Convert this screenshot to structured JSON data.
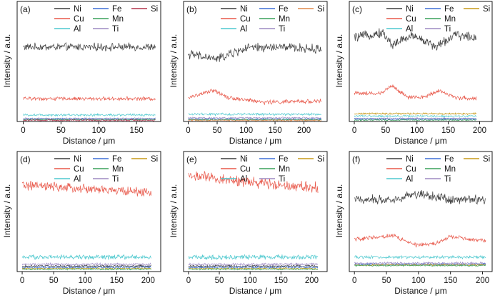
{
  "figure": {
    "xlabel": "Distance / μm",
    "ylabel": "Intensity / a.u."
  },
  "colors": {
    "Ni": "#3d3d3d",
    "Fe": "#3f6fd6",
    "Si": "#c79a18",
    "Si_a": "#b3344b",
    "Si_b": "#e0894a",
    "Cu": "#e8584a",
    "Mn": "#3aa05c",
    "Al": "#4fc9cf",
    "Ti": "#9d8ac2"
  },
  "chart_data": [
    {
      "type": "line",
      "panel_label": "(a)",
      "xlim": [
        -8,
        182
      ],
      "x_ticks": [
        0,
        50,
        100,
        150
      ],
      "x_range": [
        0,
        175
      ],
      "legend": {
        "row1": [
          "Ni",
          "Fe",
          "Si"
        ],
        "row2": [
          "Cu",
          "Mn"
        ],
        "row3": [
          "Al",
          "Ti"
        ]
      },
      "si_color_key": "Si_a",
      "series": [
        {
          "name": "Ni",
          "profile": [
            [
              0,
              0.62
            ],
            [
              175,
              0.62
            ]
          ],
          "noise": 0.025
        },
        {
          "name": "Cu",
          "profile": [
            [
              0,
              0.19
            ],
            [
              175,
              0.19
            ]
          ],
          "noise": 0.012
        },
        {
          "name": "Al",
          "profile": [
            [
              0,
              0.055
            ],
            [
              175,
              0.055
            ]
          ],
          "noise": 0.008
        },
        {
          "name": "Ti",
          "profile": [
            [
              0,
              0.025
            ],
            [
              175,
              0.025
            ]
          ],
          "noise": 0.005
        },
        {
          "name": "Fe",
          "profile": [
            [
              0,
              0.02
            ],
            [
              175,
              0.02
            ]
          ],
          "noise": 0.005
        },
        {
          "name": "Mn",
          "profile": [
            [
              0,
              0.015
            ],
            [
              175,
              0.015
            ]
          ],
          "noise": 0.005
        },
        {
          "name": "Si",
          "profile": [
            [
              0,
              0.01
            ],
            [
              175,
              0.01
            ]
          ],
          "noise": 0.005
        }
      ]
    },
    {
      "type": "line",
      "panel_label": "(b)",
      "xlim": [
        -8,
        240
      ],
      "x_ticks": [
        0,
        50,
        100,
        150,
        200
      ],
      "x_range": [
        0,
        230
      ],
      "legend": {
        "row1": [
          "Ni",
          "Fe",
          "Si"
        ],
        "row2": [
          "Cu",
          "Mn"
        ],
        "row3": [
          "Al",
          "Ti"
        ]
      },
      "si_color_key": "Si_b",
      "series": [
        {
          "name": "Ni",
          "profile": [
            [
              0,
              0.56
            ],
            [
              50,
              0.52
            ],
            [
              100,
              0.61
            ],
            [
              160,
              0.62
            ],
            [
              230,
              0.6
            ]
          ],
          "noise": 0.03
        },
        {
          "name": "Cu",
          "profile": [
            [
              0,
              0.2
            ],
            [
              45,
              0.26
            ],
            [
              70,
              0.2
            ],
            [
              130,
              0.16
            ],
            [
              230,
              0.17
            ]
          ],
          "noise": 0.014
        },
        {
          "name": "Al",
          "profile": [
            [
              0,
              0.06
            ],
            [
              230,
              0.06
            ]
          ],
          "noise": 0.008
        },
        {
          "name": "Ti",
          "profile": [
            [
              0,
              0.03
            ],
            [
              230,
              0.03
            ]
          ],
          "noise": 0.005
        },
        {
          "name": "Fe",
          "profile": [
            [
              0,
              0.02
            ],
            [
              230,
              0.02
            ]
          ],
          "noise": 0.005
        },
        {
          "name": "Mn",
          "profile": [
            [
              0,
              0.015
            ],
            [
              230,
              0.015
            ]
          ],
          "noise": 0.005
        },
        {
          "name": "Si",
          "profile": [
            [
              0,
              0.01
            ],
            [
              230,
              0.01
            ]
          ],
          "noise": 0.005
        }
      ]
    },
    {
      "type": "line",
      "panel_label": "(c)",
      "xlim": [
        -8,
        220
      ],
      "x_ticks": [
        0,
        50,
        100,
        150,
        200
      ],
      "x_range": [
        0,
        195
      ],
      "legend": {
        "row1": [
          "Ni",
          "Fe",
          "Si"
        ],
        "row2": [
          "Cu",
          "Mn"
        ],
        "row3": [
          "Al",
          "Ti"
        ]
      },
      "si_color_key": "Si",
      "series": [
        {
          "name": "Ni",
          "profile": [
            [
              0,
              0.7
            ],
            [
              45,
              0.74
            ],
            [
              60,
              0.64
            ],
            [
              95,
              0.72
            ],
            [
              130,
              0.62
            ],
            [
              160,
              0.72
            ],
            [
              195,
              0.7
            ]
          ],
          "noise": 0.03
        },
        {
          "name": "Cu",
          "profile": [
            [
              0,
              0.24
            ],
            [
              40,
              0.23
            ],
            [
              60,
              0.3
            ],
            [
              85,
              0.2
            ],
            [
              110,
              0.2
            ],
            [
              135,
              0.26
            ],
            [
              160,
              0.2
            ],
            [
              195,
              0.19
            ]
          ],
          "noise": 0.014
        },
        {
          "name": "Si",
          "profile": [
            [
              0,
              0.065
            ],
            [
              195,
              0.065
            ]
          ],
          "noise": 0.006
        },
        {
          "name": "Al",
          "profile": [
            [
              0,
              0.045
            ],
            [
              195,
              0.045
            ]
          ],
          "noise": 0.006
        },
        {
          "name": "Ti",
          "profile": [
            [
              0,
              0.025
            ],
            [
              195,
              0.025
            ]
          ],
          "noise": 0.005
        },
        {
          "name": "Fe",
          "profile": [
            [
              0,
              0.02
            ],
            [
              195,
              0.02
            ]
          ],
          "noise": 0.005
        },
        {
          "name": "Mn",
          "profile": [
            [
              0,
              0.012
            ],
            [
              195,
              0.012
            ]
          ],
          "noise": 0.004
        }
      ]
    },
    {
      "type": "line",
      "panel_label": "(d)",
      "xlim": [
        -8,
        220
      ],
      "x_ticks": [
        0,
        50,
        100,
        150,
        200
      ],
      "x_range": [
        0,
        205
      ],
      "legend": {
        "row1": [
          "Ni",
          "Fe",
          "Si"
        ],
        "row2": [
          "Cu",
          "Mn"
        ],
        "row3": [
          "Al",
          "Ti"
        ]
      },
      "si_color_key": "Si",
      "series": [
        {
          "name": "Cu",
          "profile": [
            [
              0,
              0.72
            ],
            [
              60,
              0.7
            ],
            [
              130,
              0.68
            ],
            [
              205,
              0.66
            ]
          ],
          "noise": 0.03
        },
        {
          "name": "Al",
          "profile": [
            [
              0,
              0.12
            ],
            [
              205,
              0.12
            ]
          ],
          "noise": 0.015
        },
        {
          "name": "Ti",
          "profile": [
            [
              0,
              0.06
            ],
            [
              205,
              0.06
            ]
          ],
          "noise": 0.008
        },
        {
          "name": "Ni",
          "profile": [
            [
              0,
              0.045
            ],
            [
              205,
              0.045
            ]
          ],
          "noise": 0.007
        },
        {
          "name": "Fe",
          "profile": [
            [
              0,
              0.035
            ],
            [
              205,
              0.035
            ]
          ],
          "noise": 0.006
        },
        {
          "name": "Si",
          "profile": [
            [
              0,
              0.025
            ],
            [
              205,
              0.025
            ]
          ],
          "noise": 0.005
        },
        {
          "name": "Mn",
          "profile": [
            [
              0,
              0.02
            ],
            [
              205,
              0.02
            ]
          ],
          "noise": 0.005
        }
      ]
    },
    {
      "type": "line",
      "panel_label": "(e)",
      "xlim": [
        -8,
        225
      ],
      "x_ticks": [
        0,
        50,
        100,
        150,
        200
      ],
      "x_range": [
        0,
        210
      ],
      "legend": {
        "row1": [
          "Ni",
          "Fe",
          "Si"
        ],
        "row2": [
          "Cu",
          "Mn"
        ],
        "row3": [
          "Al",
          "Ti"
        ]
      },
      "si_color_key": "Si",
      "series": [
        {
          "name": "Cu",
          "profile": [
            [
              0,
              0.8
            ],
            [
              50,
              0.77
            ],
            [
              110,
              0.74
            ],
            [
              160,
              0.72
            ],
            [
              210,
              0.7
            ]
          ],
          "noise": 0.035
        },
        {
          "name": "Al",
          "profile": [
            [
              0,
              0.12
            ],
            [
              210,
              0.12
            ]
          ],
          "noise": 0.016
        },
        {
          "name": "Ti",
          "profile": [
            [
              0,
              0.06
            ],
            [
              210,
              0.06
            ]
          ],
          "noise": 0.008
        },
        {
          "name": "Ni",
          "profile": [
            [
              0,
              0.045
            ],
            [
              210,
              0.045
            ]
          ],
          "noise": 0.007
        },
        {
          "name": "Fe",
          "profile": [
            [
              0,
              0.035
            ],
            [
              210,
              0.035
            ]
          ],
          "noise": 0.006
        },
        {
          "name": "Si",
          "profile": [
            [
              0,
              0.025
            ],
            [
              210,
              0.025
            ]
          ],
          "noise": 0.005
        },
        {
          "name": "Mn",
          "profile": [
            [
              0,
              0.02
            ],
            [
              210,
              0.02
            ]
          ],
          "noise": 0.005
        }
      ]
    },
    {
      "type": "line",
      "panel_label": "(f)",
      "xlim": [
        -8,
        215
      ],
      "x_ticks": [
        0,
        50,
        100,
        150,
        200
      ],
      "x_range": [
        0,
        205
      ],
      "legend": {
        "row1": [
          "Ni",
          "Fe",
          "Si"
        ],
        "row2": [
          "Cu",
          "Mn"
        ],
        "row3": [
          "Al",
          "Ti"
        ]
      },
      "si_color_key": "Si",
      "series": [
        {
          "name": "Ni",
          "profile": [
            [
              0,
              0.6
            ],
            [
              60,
              0.6
            ],
            [
              100,
              0.65
            ],
            [
              150,
              0.6
            ],
            [
              205,
              0.6
            ]
          ],
          "noise": 0.03
        },
        {
          "name": "Cu",
          "profile": [
            [
              0,
              0.27
            ],
            [
              60,
              0.3
            ],
            [
              95,
              0.22
            ],
            [
              125,
              0.23
            ],
            [
              150,
              0.29
            ],
            [
              205,
              0.25
            ]
          ],
          "noise": 0.014
        },
        {
          "name": "Al",
          "profile": [
            [
              0,
              0.12
            ],
            [
              205,
              0.12
            ]
          ],
          "noise": 0.01
        },
        {
          "name": "Ti",
          "profile": [
            [
              0,
              0.07
            ],
            [
              205,
              0.07
            ]
          ],
          "noise": 0.007
        },
        {
          "name": "Fe",
          "profile": [
            [
              0,
              0.06
            ],
            [
              205,
              0.06
            ]
          ],
          "noise": 0.006
        },
        {
          "name": "Si",
          "profile": [
            [
              0,
              0.055
            ],
            [
              205,
              0.055
            ]
          ],
          "noise": 0.006
        },
        {
          "name": "Mn",
          "profile": [
            [
              0,
              0.05
            ],
            [
              205,
              0.05
            ]
          ],
          "noise": 0.005
        }
      ]
    }
  ]
}
